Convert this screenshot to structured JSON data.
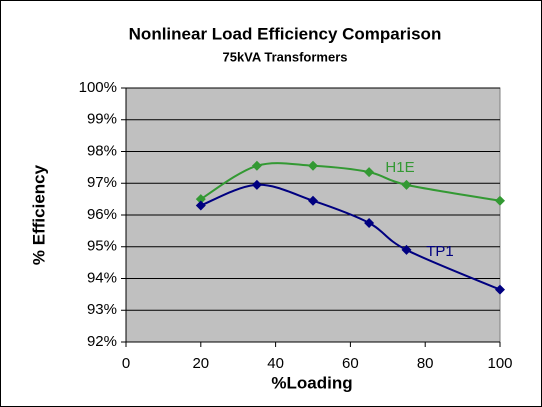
{
  "chart_data": {
    "type": "line",
    "title": "Nonlinear Load Efficiency Comparison",
    "subtitle": "75kVA Transformers",
    "x_label": "%Loading",
    "y_label": "% Efficiency",
    "xlim": [
      0,
      100
    ],
    "xticks": [
      0,
      20,
      40,
      60,
      80,
      100
    ],
    "ylim": [
      92,
      100
    ],
    "yticks": [
      {
        "value": 92,
        "label": "92%"
      },
      {
        "value": 93,
        "label": "93%"
      },
      {
        "value": 94,
        "label": "94%"
      },
      {
        "value": 95,
        "label": "95%"
      },
      {
        "value": 96,
        "label": "96%"
      },
      {
        "value": 97,
        "label": "97%"
      },
      {
        "value": 98,
        "label": "98%"
      },
      {
        "value": 99,
        "label": "99%"
      },
      {
        "value": 100,
        "label": "100%"
      }
    ],
    "grid": true,
    "series": [
      {
        "name": "H1E",
        "color": "#339933",
        "x": [
          20,
          35,
          50,
          65,
          75,
          100
        ],
        "values": [
          96.5,
          97.55,
          97.55,
          97.35,
          96.95,
          96.45
        ]
      },
      {
        "name": "TP1",
        "color": "#000080",
        "x": [
          20,
          35,
          50,
          65,
          75,
          100
        ],
        "values": [
          96.3,
          96.95,
          96.45,
          95.75,
          94.9,
          93.65
        ]
      }
    ]
  }
}
